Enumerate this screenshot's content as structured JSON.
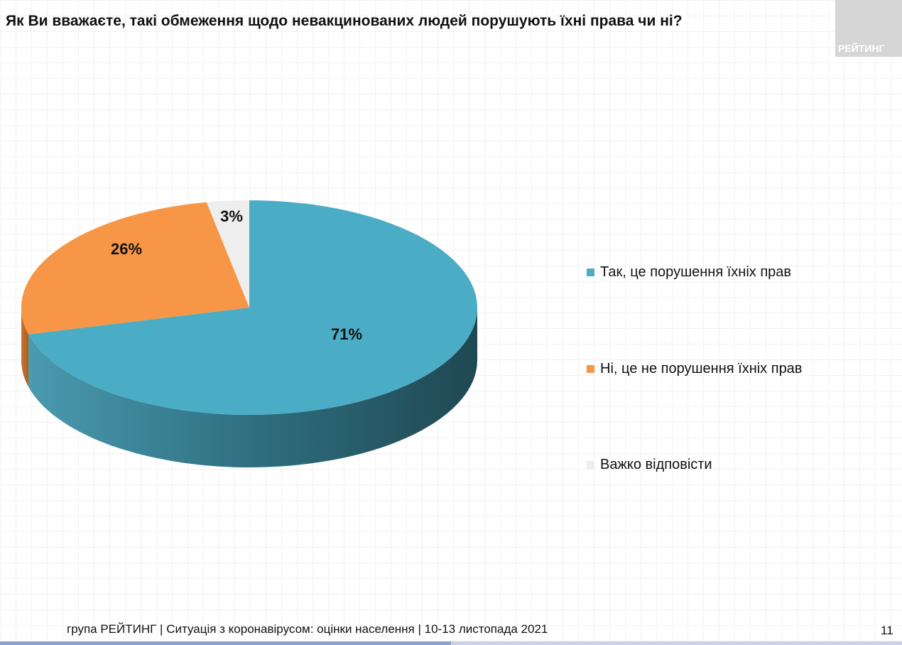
{
  "title": "Як Ви вважаєте, такі обмеження щодо невакцинованих людей порушують їхні права чи ні?",
  "logo_text": "РЕЙТИНГ",
  "footer": "група РЕЙТИНГ | Ситуація з коронавірусом: оцінки населення | 10-13 листопада 2021",
  "page_number": "11",
  "chart_data": {
    "type": "pie",
    "style": "3d",
    "legend_position": "right",
    "categories": [
      "Так, це порушення їхніх прав",
      "Ні, це не порушення їхніх прав",
      "Важко відповісти"
    ],
    "values": [
      71,
      26,
      3
    ],
    "labels": [
      "71%",
      "26%",
      "3%"
    ],
    "colors": [
      "#4BACC6",
      "#F79646",
      "#EEEEEE"
    ]
  }
}
